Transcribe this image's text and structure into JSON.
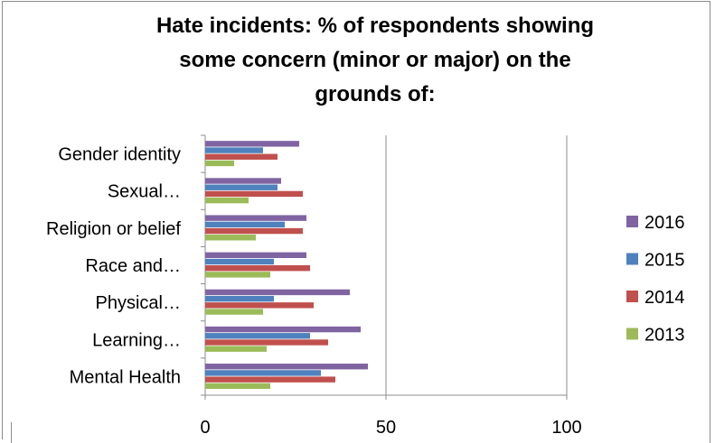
{
  "chart_data": {
    "type": "bar",
    "orientation": "horizontal",
    "title": "Hate incidents: % of respondents showing some concern (minor or major) on the grounds of:",
    "categories": [
      "Gender identity",
      "Sexual…",
      "Religion or belief",
      "Race and…",
      "Physical…",
      "Learning…",
      "Mental Health"
    ],
    "series": [
      {
        "name": "2016",
        "color": "#8064a2",
        "values": [
          26,
          21,
          28,
          28,
          40,
          43,
          45
        ]
      },
      {
        "name": "2015",
        "color": "#4f81bd",
        "values": [
          16,
          20,
          22,
          19,
          19,
          29,
          32
        ]
      },
      {
        "name": "2014",
        "color": "#c0504d",
        "values": [
          20,
          27,
          27,
          29,
          30,
          34,
          36
        ]
      },
      {
        "name": "2013",
        "color": "#9bbb59",
        "values": [
          8,
          12,
          14,
          18,
          16,
          17,
          18
        ]
      }
    ],
    "xlim": [
      0,
      100
    ],
    "xticks": [
      "0",
      "50",
      "100"
    ],
    "grid": true,
    "legend_position": "right"
  }
}
